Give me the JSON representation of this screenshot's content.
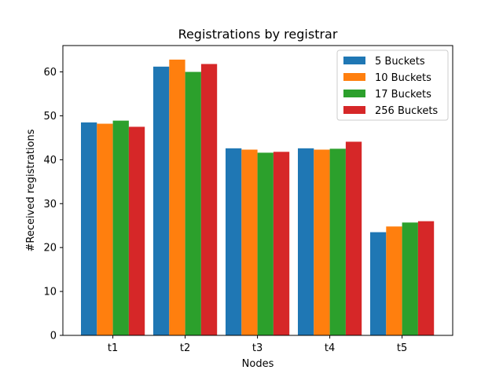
{
  "chart_data": {
    "type": "bar",
    "title": "Registrations by registrar",
    "xlabel": "Nodes",
    "ylabel": "#Received registrations",
    "categories": [
      "t1",
      "t2",
      "t3",
      "t4",
      "t5"
    ],
    "ylim": [
      0,
      66
    ],
    "yticks": [
      0,
      10,
      20,
      30,
      40,
      50,
      60
    ],
    "grid": false,
    "legend_position": "top-right",
    "series": [
      {
        "name": "5 Buckets",
        "color": "#1f77b4",
        "values": [
          48.5,
          61.2,
          42.6,
          42.6,
          23.5
        ]
      },
      {
        "name": "10 Buckets",
        "color": "#ff7f0e",
        "values": [
          48.2,
          62.8,
          42.3,
          42.3,
          24.8
        ]
      },
      {
        "name": "17 Buckets",
        "color": "#2ca02c",
        "values": [
          48.9,
          60.0,
          41.6,
          42.5,
          25.7
        ]
      },
      {
        "name": "256 Buckets",
        "color": "#d62728",
        "values": [
          47.5,
          61.8,
          41.8,
          44.1,
          26.0
        ]
      }
    ]
  }
}
